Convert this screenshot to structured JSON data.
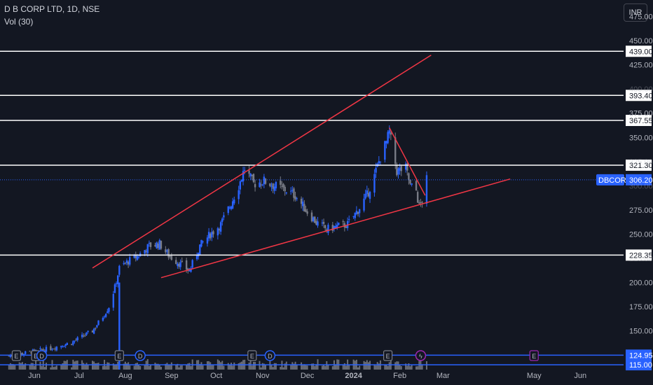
{
  "header": {
    "title": "D B CORP LTD, 1D, NSE",
    "volume_label": "Vol (30)",
    "currency": "INR"
  },
  "colors": {
    "background": "#131722",
    "up_candle": "#2962ff",
    "down_candle": "#787b86",
    "trendline": "#f23645",
    "level_line": "#ffffff",
    "current_price": "#2962ff",
    "volume": "#b2b5be"
  },
  "chart_data": {
    "type": "candlestick",
    "symbol": "DBCORP",
    "current_price": "306.20",
    "y_ticks": [
      "475.00",
      "450.00",
      "425.00",
      "400.00",
      "375.00",
      "350.00",
      "325.00",
      "300.00",
      "275.00",
      "250.00",
      "225.00",
      "200.00",
      "175.00",
      "150.00"
    ],
    "x_ticks": [
      {
        "label": "Jun",
        "date": "2023-06-01"
      },
      {
        "label": "Jul",
        "date": "2023-07-01"
      },
      {
        "label": "Aug",
        "date": "2023-08-01"
      },
      {
        "label": "Sep",
        "date": "2023-09-01"
      },
      {
        "label": "Oct",
        "date": "2023-10-01"
      },
      {
        "label": "Nov",
        "date": "2023-11-01"
      },
      {
        "label": "Dec",
        "date": "2023-12-01"
      },
      {
        "label": "2024",
        "date": "2024-01-01"
      },
      {
        "label": "Feb",
        "date": "2024-02-01"
      },
      {
        "label": "Mar",
        "date": "2024-03-01"
      },
      {
        "label": "May",
        "date": "2024-05-01"
      },
      {
        "label": "Jun",
        "date": "2024-06-01"
      }
    ],
    "levels": [
      "439.00",
      "393.40",
      "367.55",
      "321.30",
      "228.35",
      "124.95",
      "115.00"
    ],
    "trendlines": [
      {
        "name": "upper",
        "from": [
          "2023-07-10",
          215
        ],
        "to": [
          "2024-02-22",
          435
        ]
      },
      {
        "name": "lower",
        "from": [
          "2023-08-25",
          205
        ],
        "to": [
          "2024-04-15",
          307
        ]
      },
      {
        "name": "short-term",
        "from": [
          "2024-01-25",
          360
        ],
        "to": [
          "2024-02-18",
          290
        ]
      }
    ],
    "price_path": [
      [
        "2023-05-15",
        124
      ],
      [
        "2023-05-29",
        128
      ],
      [
        "2023-06-12",
        132
      ],
      [
        "2023-06-26",
        138
      ],
      [
        "2023-07-10",
        150
      ],
      [
        "2023-07-17",
        165
      ],
      [
        "2023-07-21",
        175
      ],
      [
        "2023-07-25",
        195
      ],
      [
        "2023-07-28",
        215
      ],
      [
        "2023-08-03",
        222
      ],
      [
        "2023-08-10",
        228
      ],
      [
        "2023-08-17",
        238
      ],
      [
        "2023-08-24",
        240
      ],
      [
        "2023-08-30",
        228
      ],
      [
        "2023-09-06",
        220
      ],
      [
        "2023-09-13",
        212
      ],
      [
        "2023-09-20",
        238
      ],
      [
        "2023-09-27",
        250
      ],
      [
        "2023-10-04",
        260
      ],
      [
        "2023-10-11",
        282
      ],
      [
        "2023-10-16",
        300
      ],
      [
        "2023-10-20",
        318
      ],
      [
        "2023-10-26",
        302
      ],
      [
        "2023-11-02",
        305
      ],
      [
        "2023-11-09",
        300
      ],
      [
        "2023-11-16",
        296
      ],
      [
        "2023-11-23",
        290
      ],
      [
        "2023-11-30",
        275
      ],
      [
        "2023-12-07",
        262
      ],
      [
        "2023-12-14",
        255
      ],
      [
        "2023-12-21",
        258
      ],
      [
        "2023-12-28",
        260
      ],
      [
        "2024-01-04",
        275
      ],
      [
        "2024-01-10",
        290
      ],
      [
        "2024-01-15",
        310
      ],
      [
        "2024-01-19",
        330
      ],
      [
        "2024-01-23",
        345
      ],
      [
        "2024-01-25",
        355
      ],
      [
        "2024-01-30",
        315
      ],
      [
        "2024-02-05",
        318
      ],
      [
        "2024-02-08",
        300
      ],
      [
        "2024-02-12",
        295
      ],
      [
        "2024-02-14",
        278
      ],
      [
        "2024-02-16",
        285
      ],
      [
        "2024-02-19",
        306
      ]
    ],
    "y_range": [
      110,
      492
    ],
    "x_range": [
      "2023-05-09",
      "2024-06-30"
    ]
  }
}
